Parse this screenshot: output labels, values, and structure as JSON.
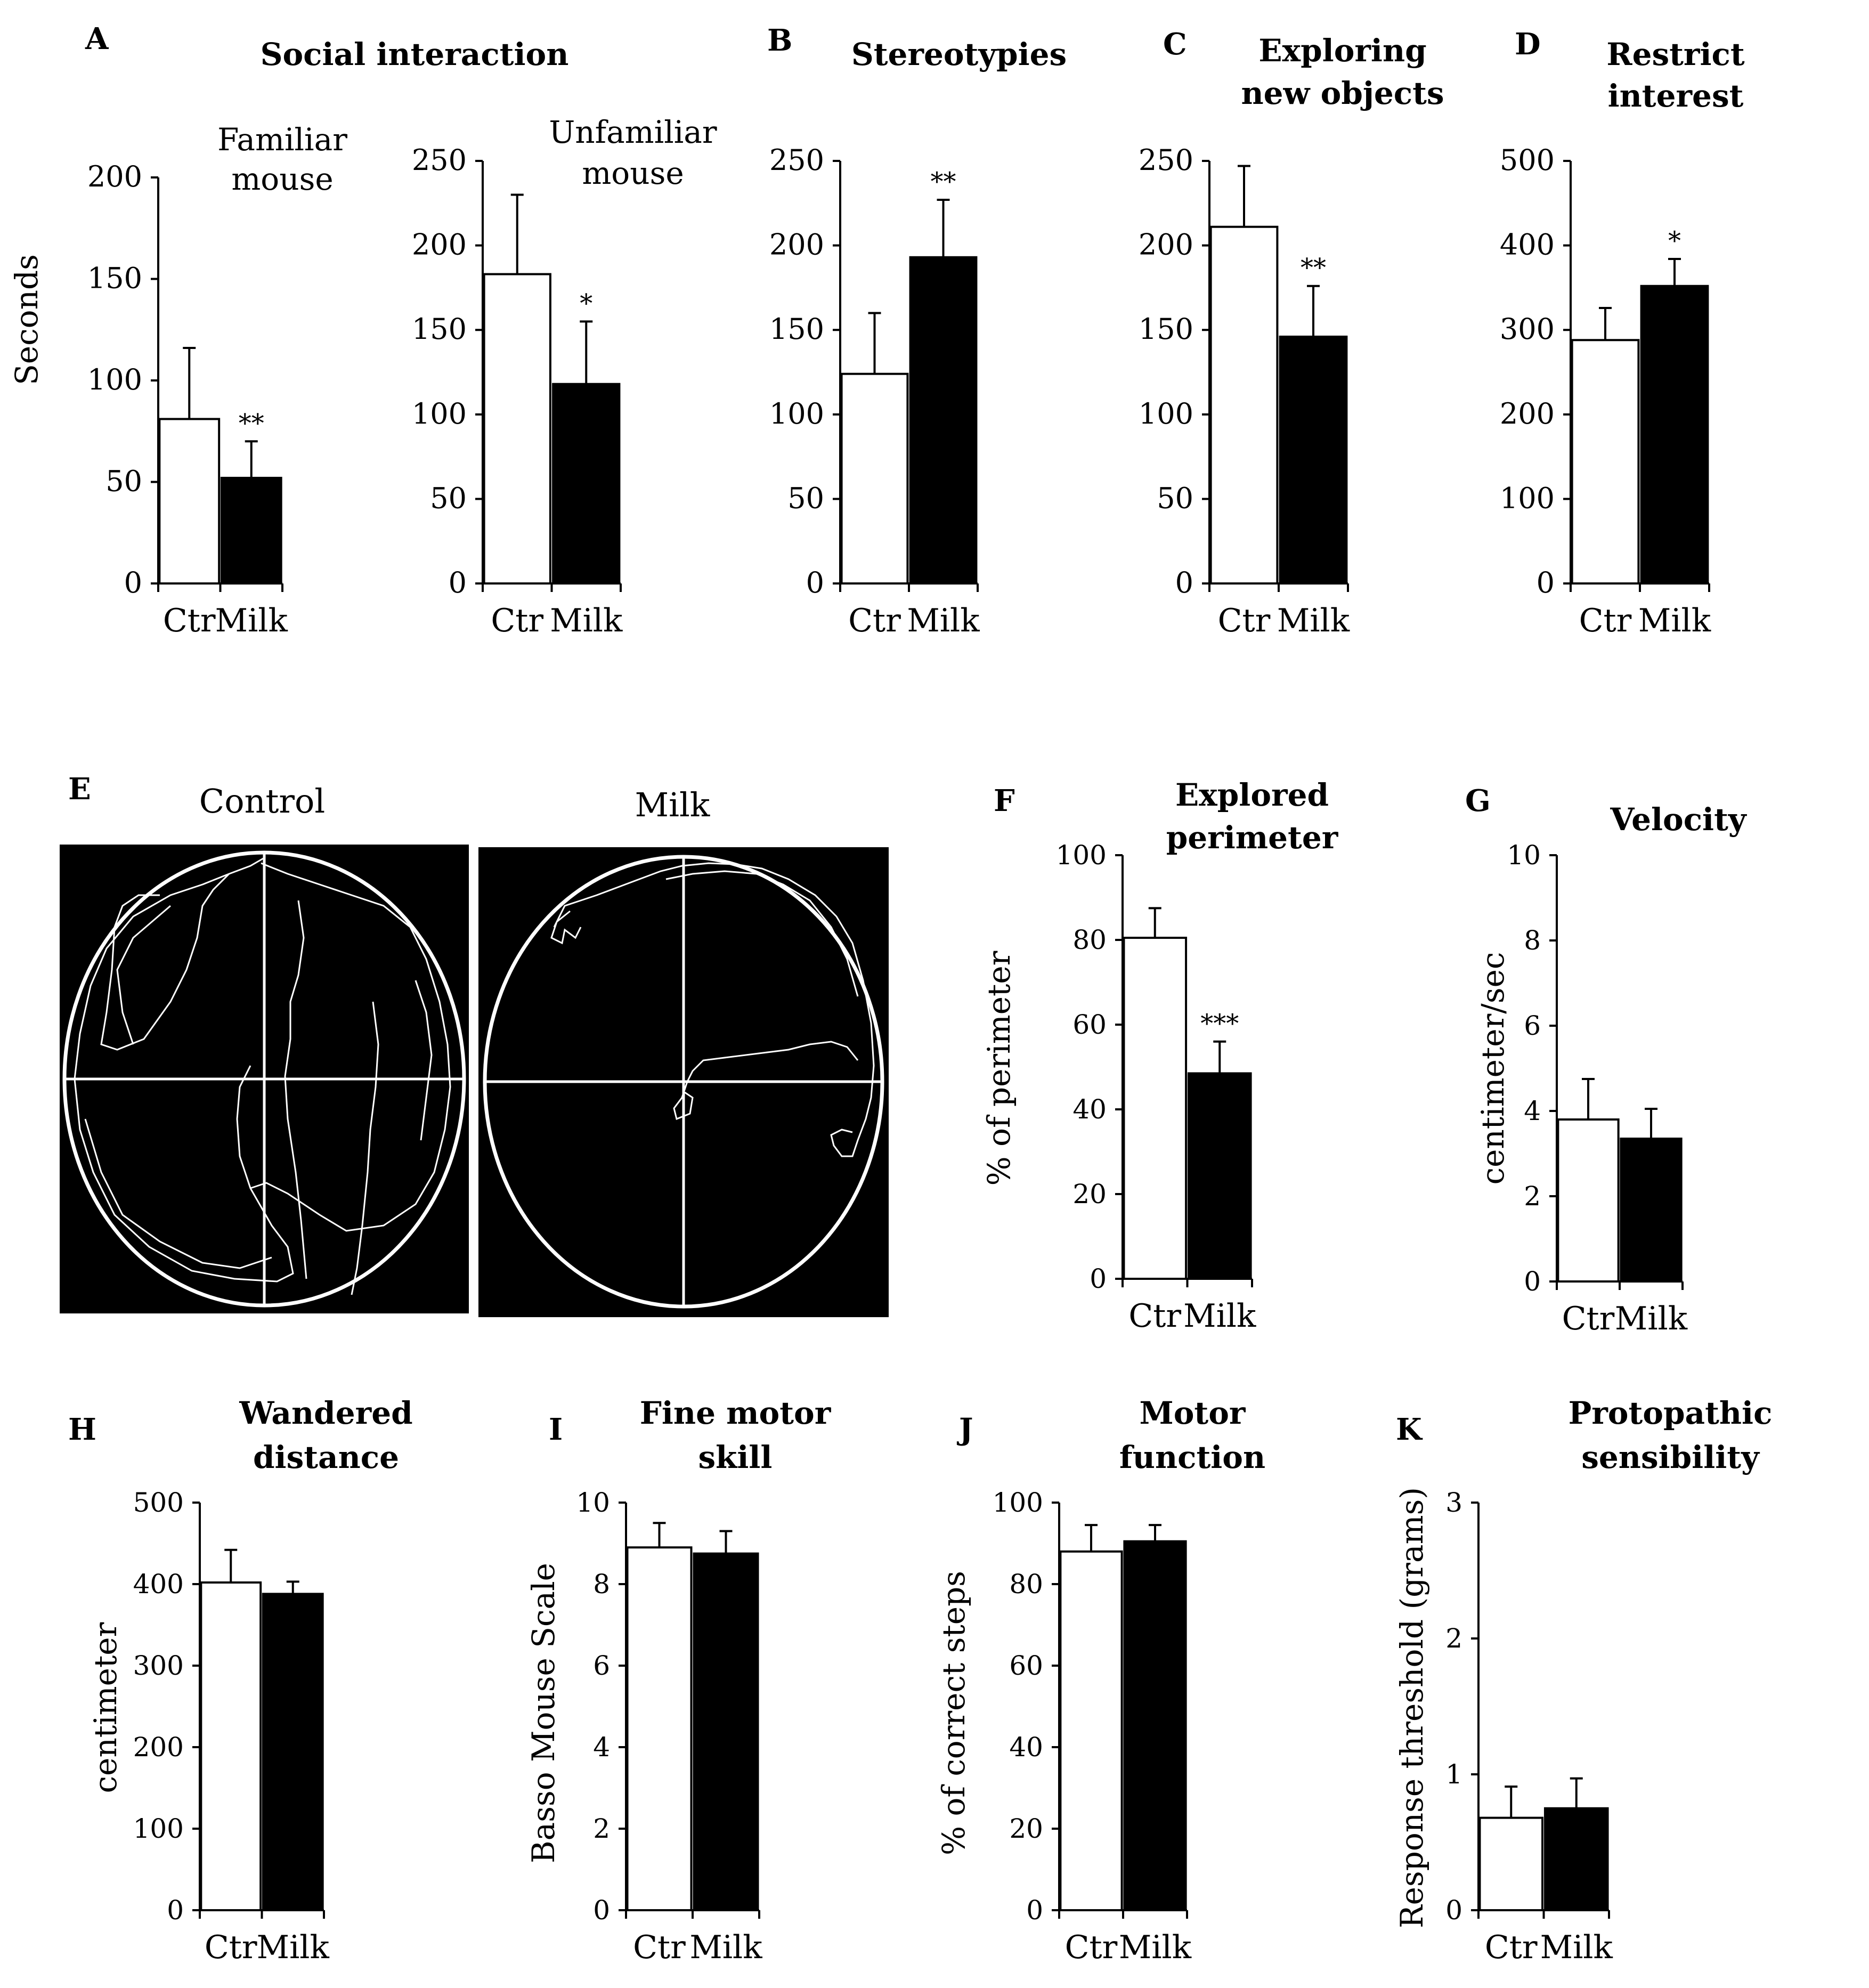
{
  "figure": {
    "tracking": {
      "panel_letter": "E",
      "arena_titles": [
        "Control",
        "Milk"
      ]
    }
  },
  "chart_data": [
    {
      "id": "A1",
      "type": "bar",
      "panel_letter": "A",
      "group_title": "Social interaction",
      "title": [
        "Familiar",
        "mouse"
      ],
      "ylabel": "Seconds",
      "ylim": [
        0,
        200
      ],
      "yticks": [
        0,
        50,
        100,
        150,
        200
      ],
      "categories": [
        "Ctr",
        "Milk"
      ],
      "values": [
        81,
        52
      ],
      "errors": [
        35,
        18
      ],
      "significance": [
        "",
        "**"
      ]
    },
    {
      "id": "A2",
      "type": "bar",
      "panel_letter": "",
      "title": [
        "Unfamiliar",
        "mouse"
      ],
      "ylabel": "",
      "ylim": [
        0,
        250
      ],
      "yticks": [
        0,
        50,
        100,
        150,
        200,
        250
      ],
      "categories": [
        "Ctr",
        "Milk"
      ],
      "values": [
        183,
        118
      ],
      "errors": [
        47,
        37
      ],
      "significance": [
        "",
        "*"
      ]
    },
    {
      "id": "B",
      "type": "bar",
      "panel_letter": "B",
      "title": [
        "Stereotypies"
      ],
      "ylabel": "",
      "ylim": [
        0,
        250
      ],
      "yticks": [
        0,
        50,
        100,
        150,
        200,
        250
      ],
      "categories": [
        "Ctr",
        "Milk"
      ],
      "values": [
        124,
        193
      ],
      "errors": [
        36,
        34
      ],
      "significance": [
        "",
        "**"
      ]
    },
    {
      "id": "C",
      "type": "bar",
      "panel_letter": "C",
      "title": [
        "Exploring",
        "new objects"
      ],
      "ylabel": "",
      "ylim": [
        0,
        250
      ],
      "yticks": [
        0,
        50,
        100,
        150,
        200,
        250
      ],
      "categories": [
        "Ctr",
        "Milk"
      ],
      "values": [
        211,
        146
      ],
      "errors": [
        36,
        30
      ],
      "significance": [
        "",
        "**"
      ]
    },
    {
      "id": "D",
      "type": "bar",
      "panel_letter": "D",
      "title": [
        "Restrict",
        "interest"
      ],
      "ylabel": "",
      "ylim": [
        0,
        500
      ],
      "yticks": [
        0,
        100,
        200,
        300,
        400,
        500
      ],
      "categories": [
        "Ctr",
        "Milk"
      ],
      "values": [
        288,
        352
      ],
      "errors": [
        38,
        32
      ],
      "significance": [
        "",
        "*"
      ]
    },
    {
      "id": "F",
      "type": "bar",
      "panel_letter": "F",
      "title": [
        "Explored",
        "perimeter"
      ],
      "ylabel": "% of perimeter",
      "ylim": [
        0,
        100
      ],
      "yticks": [
        0,
        20,
        40,
        60,
        80,
        100
      ],
      "categories": [
        "Ctr",
        "Milk"
      ],
      "values": [
        80.5,
        48.5
      ],
      "errors": [
        7,
        7.5
      ],
      "significance": [
        "",
        "***"
      ]
    },
    {
      "id": "G",
      "type": "bar",
      "panel_letter": "G",
      "title": [
        "Velocity"
      ],
      "ylabel": "centimeter/sec",
      "ylim": [
        0,
        10
      ],
      "yticks": [
        0,
        2,
        4,
        6,
        8,
        10
      ],
      "categories": [
        "Ctr",
        "Milk"
      ],
      "values": [
        3.8,
        3.35
      ],
      "errors": [
        0.95,
        0.7
      ],
      "significance": [
        "",
        ""
      ]
    },
    {
      "id": "H",
      "type": "bar",
      "panel_letter": "H",
      "title": [
        "Wandered",
        "distance"
      ],
      "ylabel": "centimeter",
      "ylim": [
        0,
        500
      ],
      "yticks": [
        0,
        100,
        200,
        300,
        400,
        500
      ],
      "categories": [
        "Ctr",
        "Milk"
      ],
      "values": [
        402,
        388
      ],
      "errors": [
        40,
        15
      ],
      "significance": [
        "",
        ""
      ]
    },
    {
      "id": "I",
      "type": "bar",
      "panel_letter": "I",
      "title": [
        "Fine motor",
        "skill"
      ],
      "ylabel": "Basso Mouse Scale",
      "ylim": [
        0,
        10
      ],
      "yticks": [
        0,
        2,
        4,
        6,
        8,
        10
      ],
      "categories": [
        "Ctr",
        "Milk"
      ],
      "values": [
        8.9,
        8.75
      ],
      "errors": [
        0.6,
        0.55
      ],
      "significance": [
        "",
        ""
      ]
    },
    {
      "id": "J",
      "type": "bar",
      "panel_letter": "J",
      "title": [
        "Motor",
        "function"
      ],
      "ylabel": "% of correct steps",
      "ylim": [
        0,
        100
      ],
      "yticks": [
        0,
        20,
        40,
        60,
        80,
        100
      ],
      "categories": [
        "Ctr",
        "Milk"
      ],
      "values": [
        88,
        90.5
      ],
      "errors": [
        6.5,
        4
      ],
      "significance": [
        "",
        ""
      ]
    },
    {
      "id": "K",
      "type": "bar",
      "panel_letter": "K",
      "title": [
        "Protopathic",
        "sensibility"
      ],
      "ylabel": "Response threshold (grams)",
      "ylim": [
        0,
        3
      ],
      "yticks": [
        0,
        1,
        2,
        3
      ],
      "categories": [
        "Ctr",
        "Milk"
      ],
      "values": [
        0.68,
        0.75
      ],
      "errors": [
        0.23,
        0.22
      ],
      "significance": [
        "",
        ""
      ]
    }
  ]
}
